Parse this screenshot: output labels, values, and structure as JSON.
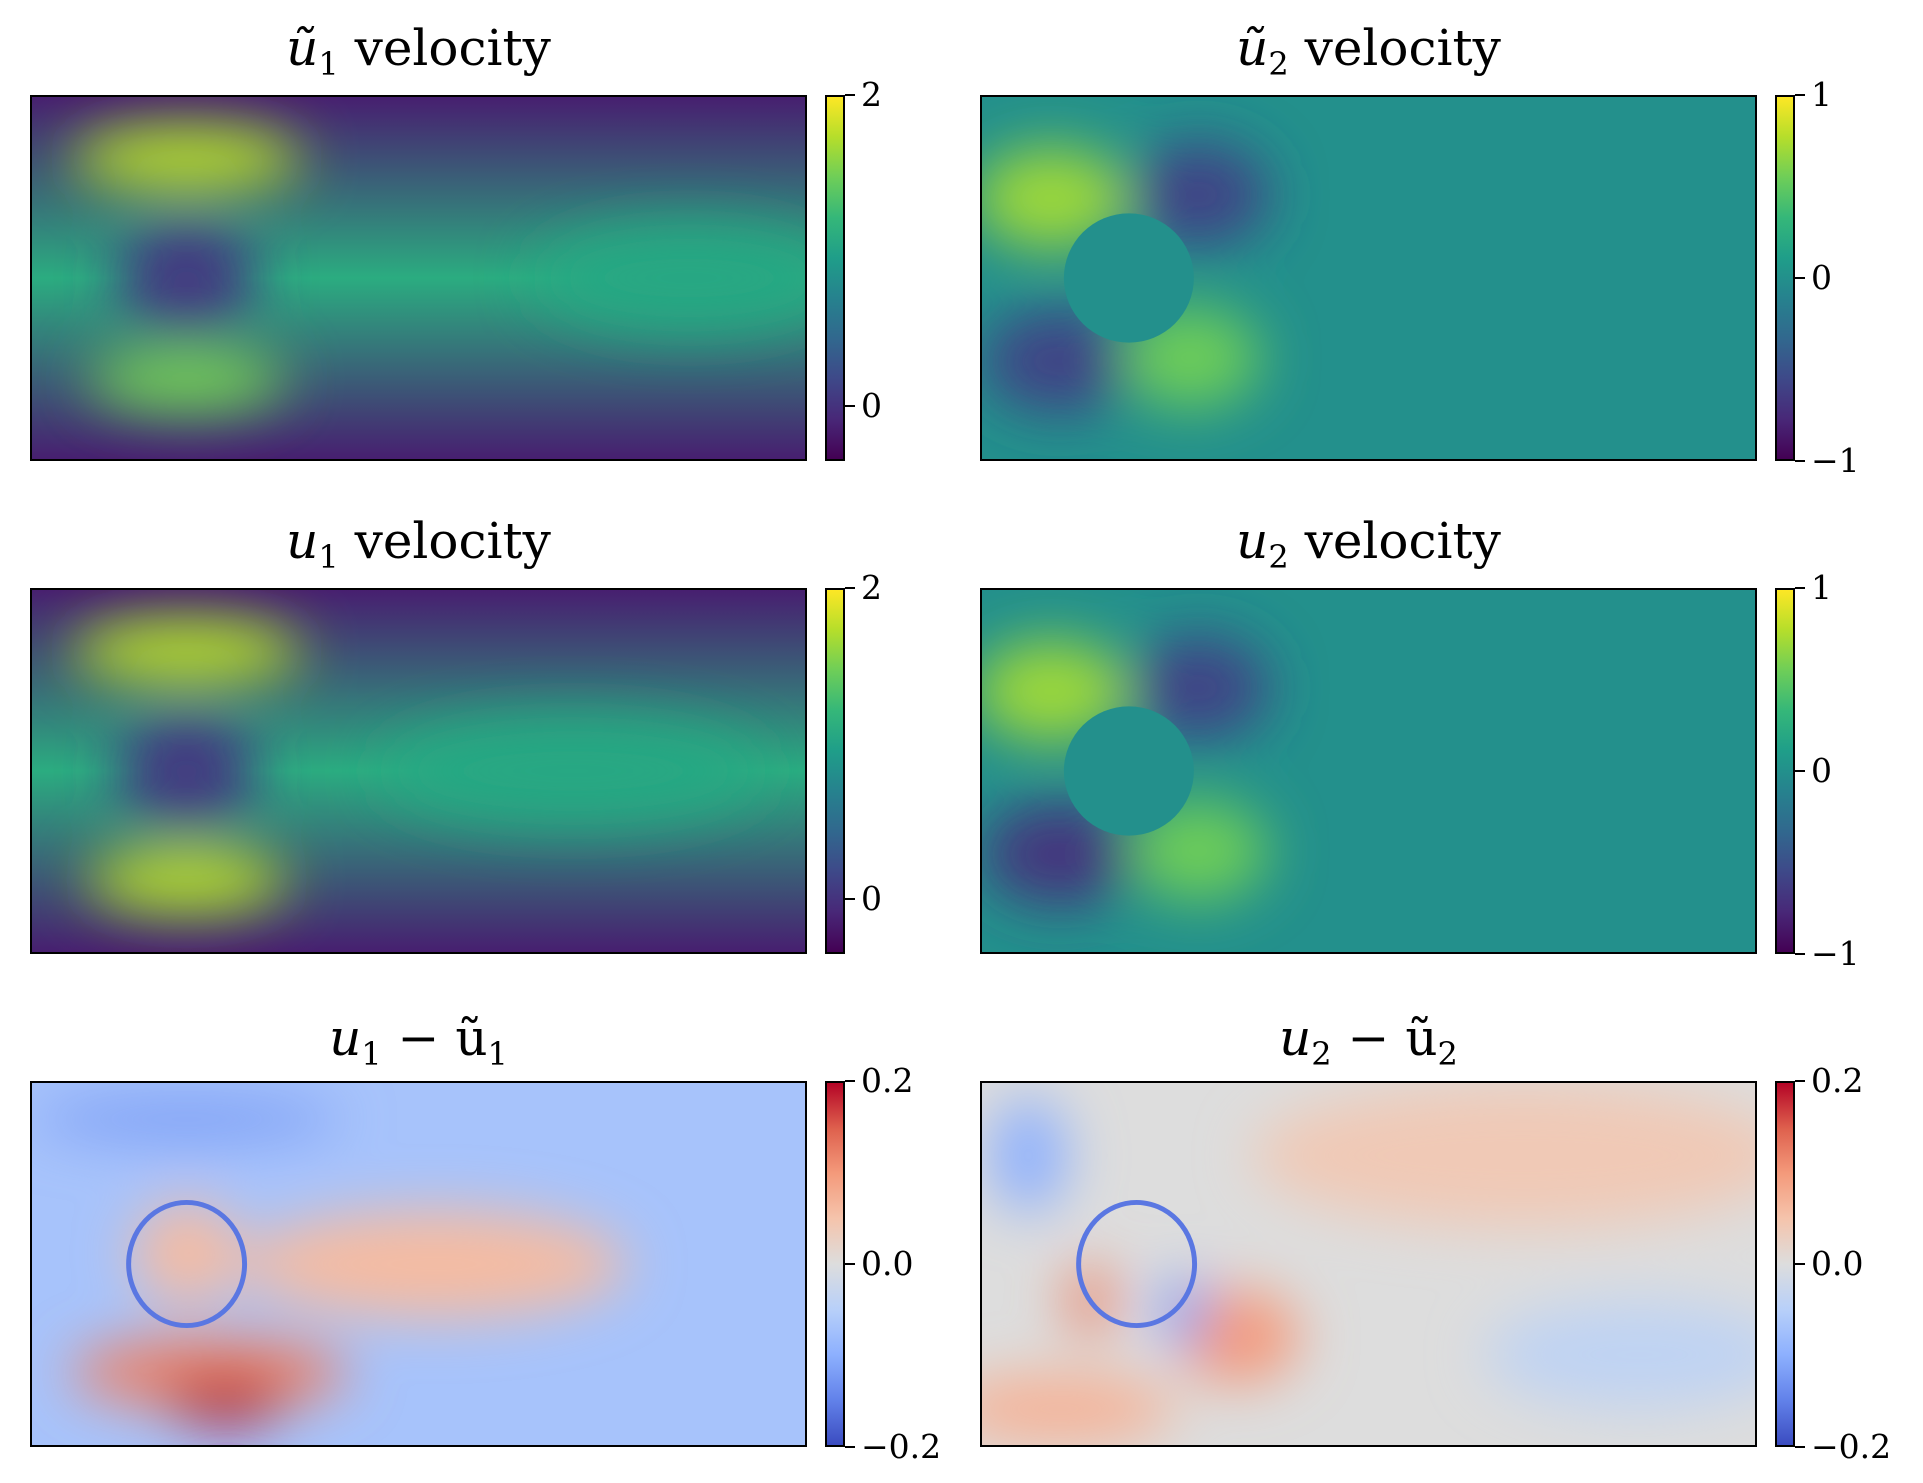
{
  "chart_data": [
    {
      "type": "heatmap",
      "title_main": "ũ",
      "title_sub": "1",
      "title_rest": " velocity",
      "colormap": "viridis",
      "colorbar": {
        "min": -0.35,
        "max": 2.0,
        "ticks": [
          2,
          0
        ],
        "tick_labels": [
          "2",
          "0"
        ]
      },
      "grid": false
    },
    {
      "type": "heatmap",
      "title_main": "ũ",
      "title_sub": "2",
      "title_rest": " velocity",
      "colormap": "viridis",
      "colorbar": {
        "min": -1.0,
        "max": 1.0,
        "ticks": [
          1,
          0,
          -1
        ],
        "tick_labels": [
          "1",
          "0",
          "−1"
        ]
      },
      "grid": false
    },
    {
      "type": "heatmap",
      "title_main": "u",
      "title_sub": "1",
      "title_rest": " velocity",
      "colormap": "viridis",
      "colorbar": {
        "min": -0.35,
        "max": 2.0,
        "ticks": [
          2,
          0
        ],
        "tick_labels": [
          "2",
          "0"
        ]
      },
      "grid": false
    },
    {
      "type": "heatmap",
      "title_main": "u",
      "title_sub": "2",
      "title_rest": " velocity",
      "colormap": "viridis",
      "colorbar": {
        "min": -1.0,
        "max": 1.0,
        "ticks": [
          1,
          0,
          -1
        ],
        "tick_labels": [
          "1",
          "0",
          "−1"
        ]
      },
      "grid": false
    },
    {
      "type": "heatmap",
      "title_main": "u",
      "title_sub": "1",
      "title_rest": " − ũ",
      "title_sub2": "1",
      "colormap": "coolwarm",
      "colorbar": {
        "min": -0.2,
        "max": 0.2,
        "ticks": [
          0.2,
          0.0,
          -0.2
        ],
        "tick_labels": [
          "0.2",
          "0.0",
          "−0.2"
        ]
      },
      "grid": false
    },
    {
      "type": "heatmap",
      "title_main": "u",
      "title_sub": "2",
      "title_rest": " − ũ",
      "title_sub2": "2",
      "colormap": "coolwarm",
      "colorbar": {
        "min": -0.2,
        "max": 0.2,
        "ticks": [
          0.2,
          0.0,
          -0.2
        ],
        "tick_labels": [
          "0.2",
          "0.0",
          "−0.2"
        ]
      },
      "grid": false
    }
  ]
}
